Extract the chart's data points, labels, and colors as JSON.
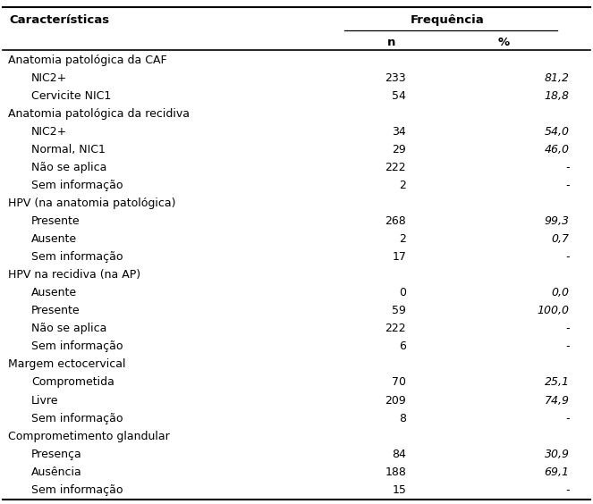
{
  "col_header_left": "Características",
  "freq_header": "Frequência",
  "subheader_n": "n",
  "subheader_pct": "%",
  "rows": [
    {
      "label": "Anatomia patológica da CAF",
      "indent": 0,
      "n": "",
      "pct": ""
    },
    {
      "label": "NIC2+",
      "indent": 1,
      "n": "233",
      "pct": "81,2"
    },
    {
      "label": "Cervicite NIC1",
      "indent": 1,
      "n": "54",
      "pct": "18,8"
    },
    {
      "label": "Anatomia patológica da recidiva",
      "indent": 0,
      "n": "",
      "pct": ""
    },
    {
      "label": "NIC2+",
      "indent": 1,
      "n": "34",
      "pct": "54,0"
    },
    {
      "label": "Normal, NIC1",
      "indent": 1,
      "n": "29",
      "pct": "46,0"
    },
    {
      "label": "Não se aplica",
      "indent": 1,
      "n": "222",
      "pct": "-"
    },
    {
      "label": "Sem informação",
      "indent": 1,
      "n": "2",
      "pct": "-"
    },
    {
      "label": "HPV (na anatomia patológica)",
      "indent": 0,
      "n": "",
      "pct": ""
    },
    {
      "label": "Presente",
      "indent": 1,
      "n": "268",
      "pct": "99,3"
    },
    {
      "label": "Ausente",
      "indent": 1,
      "n": "2",
      "pct": "0,7"
    },
    {
      "label": "Sem informação",
      "indent": 1,
      "n": "17",
      "pct": "-"
    },
    {
      "label": "HPV na recidiva (na AP)",
      "indent": 0,
      "n": "",
      "pct": ""
    },
    {
      "label": "Ausente",
      "indent": 1,
      "n": "0",
      "pct": "0,0"
    },
    {
      "label": "Presente",
      "indent": 1,
      "n": "59",
      "pct": "100,0"
    },
    {
      "label": "Não se aplica",
      "indent": 1,
      "n": "222",
      "pct": "-"
    },
    {
      "label": "Sem informação",
      "indent": 1,
      "n": "6",
      "pct": "-"
    },
    {
      "label": "Margem ectocervical",
      "indent": 0,
      "n": "",
      "pct": ""
    },
    {
      "label": "Comprometida",
      "indent": 1,
      "n": "70",
      "pct": "25,1"
    },
    {
      "label": "Livre",
      "indent": 1,
      "n": "209",
      "pct": "74,9"
    },
    {
      "label": "Sem informação",
      "indent": 1,
      "n": "8",
      "pct": "-"
    },
    {
      "label": "Comprometimento glandular",
      "indent": 0,
      "n": "",
      "pct": ""
    },
    {
      "label": "Presença",
      "indent": 1,
      "n": "84",
      "pct": "30,9"
    },
    {
      "label": "Ausência",
      "indent": 1,
      "n": "188",
      "pct": "69,1"
    },
    {
      "label": "Sem informação",
      "indent": 1,
      "n": "15",
      "pct": "-"
    }
  ],
  "bg_color": "#ffffff",
  "text_color": "#000000",
  "font_size": 9.0,
  "header_font_size": 9.5,
  "fig_width": 6.63,
  "fig_height": 5.64,
  "dpi": 100
}
